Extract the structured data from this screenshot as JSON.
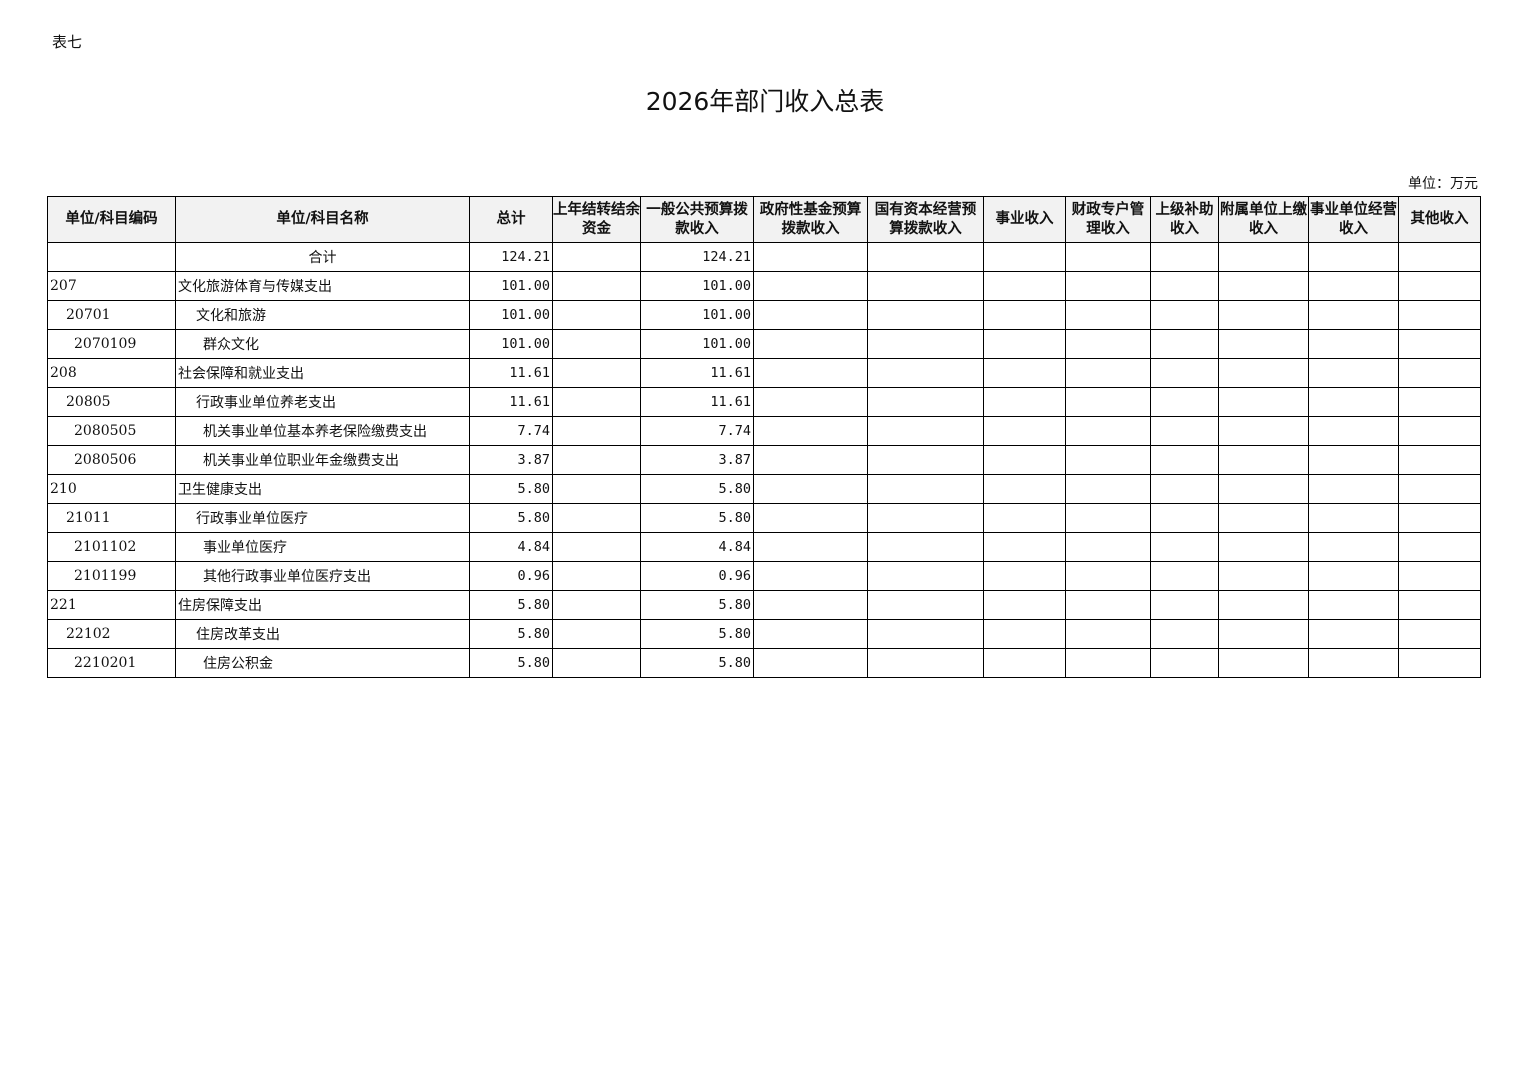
{
  "table_label": "表七",
  "title": "2026年部门收入总表",
  "unit": "单位：万元",
  "columns": [
    "单位/科目编码",
    "单位/科目名称",
    "总计",
    "上年结转结余资金",
    "一般公共预算拨款收入",
    "政府性基金预算拨款收入",
    "国有资本经营预算拨款收入",
    "事业收入",
    "财政专户管理收入",
    "上级补助收入",
    "附属单位上缴收入",
    "事业单位经营收入",
    "其他收入"
  ],
  "rows": [
    {
      "code": "",
      "name": "合计",
      "level": 0,
      "total": "124.21",
      "general": "124.21"
    },
    {
      "code": "207",
      "name": "文化旅游体育与传媒支出",
      "level": 1,
      "total": "101.00",
      "general": "101.00"
    },
    {
      "code": "20701",
      "name": "文化和旅游",
      "level": 2,
      "total": "101.00",
      "general": "101.00"
    },
    {
      "code": "2070109",
      "name": "群众文化",
      "level": 3,
      "total": "101.00",
      "general": "101.00"
    },
    {
      "code": "208",
      "name": "社会保障和就业支出",
      "level": 1,
      "total": "11.61",
      "general": "11.61"
    },
    {
      "code": "20805",
      "name": "行政事业单位养老支出",
      "level": 2,
      "total": "11.61",
      "general": "11.61"
    },
    {
      "code": "2080505",
      "name": "机关事业单位基本养老保险缴费支出",
      "level": 3,
      "total": "7.74",
      "general": "7.74"
    },
    {
      "code": "2080506",
      "name": "机关事业单位职业年金缴费支出",
      "level": 3,
      "total": "3.87",
      "general": "3.87"
    },
    {
      "code": "210",
      "name": "卫生健康支出",
      "level": 1,
      "total": "5.80",
      "general": "5.80"
    },
    {
      "code": "21011",
      "name": "行政事业单位医疗",
      "level": 2,
      "total": "5.80",
      "general": "5.80"
    },
    {
      "code": "2101102",
      "name": "事业单位医疗",
      "level": 3,
      "total": "4.84",
      "general": "4.84"
    },
    {
      "code": "2101199",
      "name": "其他行政事业单位医疗支出",
      "level": 3,
      "total": "0.96",
      "general": "0.96"
    },
    {
      "code": "221",
      "name": "住房保障支出",
      "level": 1,
      "total": "5.80",
      "general": "5.80"
    },
    {
      "code": "22102",
      "name": "住房改革支出",
      "level": 2,
      "total": "5.80",
      "general": "5.80"
    },
    {
      "code": "2210201",
      "name": "住房公积金",
      "level": 3,
      "total": "5.80",
      "general": "5.80"
    }
  ]
}
